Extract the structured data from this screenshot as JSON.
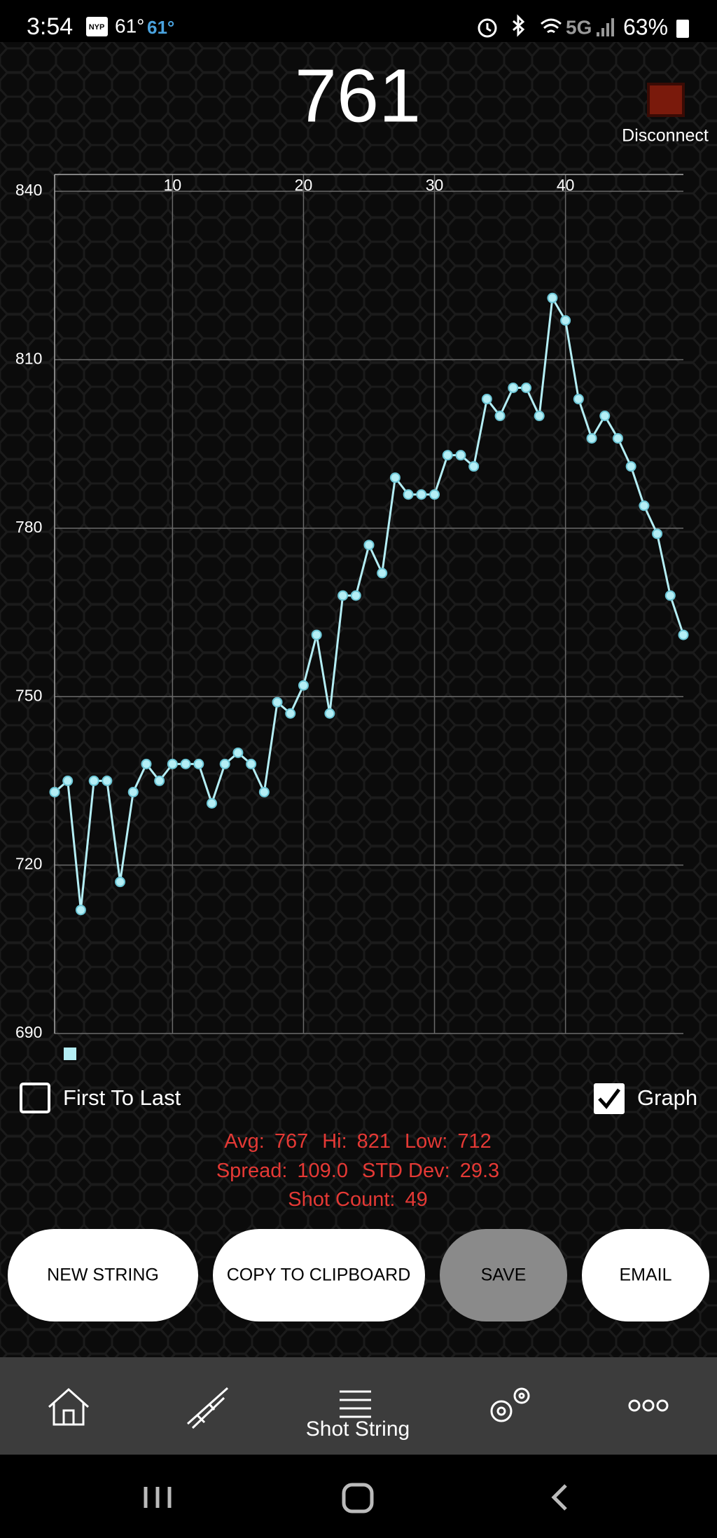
{
  "status_bar": {
    "time": "3:54",
    "app_icon": "NYP",
    "temp": "61°",
    "temp_feel": "61°",
    "network": "5G",
    "battery": "63%"
  },
  "reading": "761",
  "connection": "Disconnect",
  "chart_data": {
    "type": "line",
    "x": [
      1,
      2,
      3,
      4,
      5,
      6,
      7,
      8,
      9,
      10,
      11,
      12,
      13,
      14,
      15,
      16,
      17,
      18,
      19,
      20,
      21,
      22,
      23,
      24,
      25,
      26,
      27,
      28,
      29,
      30,
      31,
      32,
      33,
      34,
      35,
      36,
      37,
      38,
      39,
      40,
      41,
      42,
      43,
      44,
      45,
      46,
      47,
      48,
      49
    ],
    "values": [
      733,
      735,
      712,
      735,
      735,
      717,
      733,
      738,
      735,
      738,
      738,
      738,
      731,
      738,
      740,
      738,
      733,
      749,
      747,
      752,
      761,
      747,
      768,
      768,
      777,
      772,
      789,
      786,
      786,
      786,
      793,
      793,
      791,
      803,
      800,
      805,
      805,
      800,
      821,
      817,
      803,
      796,
      800,
      796,
      791,
      784,
      779,
      768,
      761
    ],
    "color": "#b4eef5",
    "xlim": [
      1,
      49
    ],
    "xticks": [
      10,
      20,
      30,
      40
    ],
    "ylim": [
      690,
      843
    ],
    "yticks": [
      690,
      720,
      750,
      780,
      810,
      840
    ],
    "grid": true
  },
  "options": {
    "first_to_last": {
      "label": "First To Last",
      "checked": false
    },
    "graph": {
      "label": "Graph",
      "checked": true
    }
  },
  "stats": {
    "avg_label": "Avg:",
    "avg": "767",
    "hi_label": "Hi:",
    "hi": "821",
    "low_label": "Low:",
    "low": "712",
    "spread_label": "Spread:",
    "spread": "109.0",
    "std_label": "STD Dev:",
    "std": "29.3",
    "count_label": "Shot Count:",
    "count": "49"
  },
  "buttons": [
    "NEW STRING",
    "COPY TO CLIPBOARD",
    "SAVE",
    "EMAIL"
  ],
  "nav": {
    "active": "Shot String"
  }
}
